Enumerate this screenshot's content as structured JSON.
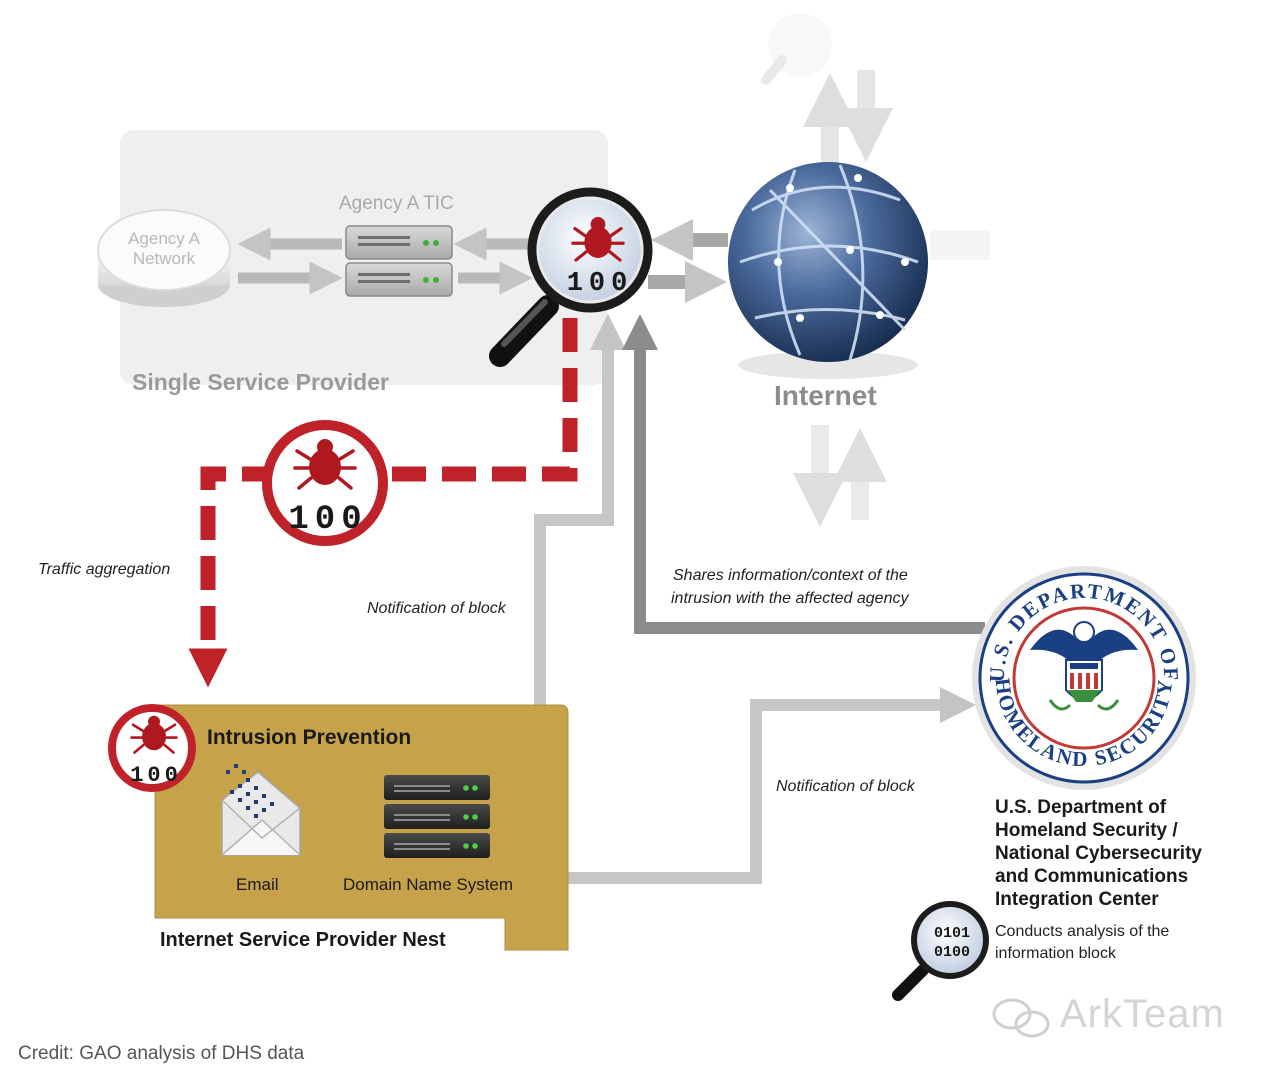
{
  "single_service_provider": {
    "title": "Single Service Provider",
    "agency_tic_label": "Agency A TIC",
    "agency_network_label": "Agency A Network"
  },
  "internet": {
    "label": "Internet"
  },
  "annotations": {
    "traffic_aggregation": "Traffic aggregation",
    "notification_of_block_1": "Notification of block",
    "notification_of_block_2": "Notification of block",
    "shares_info_line1": "Shares information/context of the",
    "shares_info_line2": "intrusion with the affected agency"
  },
  "isp_nest": {
    "title": "Internet Service Provider Nest",
    "intrusion_prevention": "Intrusion Prevention",
    "email_label": "Email",
    "dns_label": "Domain Name System"
  },
  "dhs": {
    "name": "U.S. Department of Homeland Security / National Cybersecurity and Communications Integration Center",
    "analysis": "Conducts analysis of the information block",
    "seal_top": "U.S. DEPARTMENT OF",
    "seal_bottom": "HOMELAND SECURITY",
    "magnifier_digits_1": "0101",
    "magnifier_digits_2": "0100"
  },
  "magnifier_digits": {
    "main": "100",
    "dashed": "100",
    "isp": "100"
  },
  "credit": "Credit: GAO analysis of DHS data",
  "watermark": "ArkTeam",
  "colors": {
    "danger_red": "#c0222a",
    "isp_gold": "#c6a24a",
    "arrow_gray": "#8c8c8c",
    "globe_blue": "#2c4a78"
  }
}
